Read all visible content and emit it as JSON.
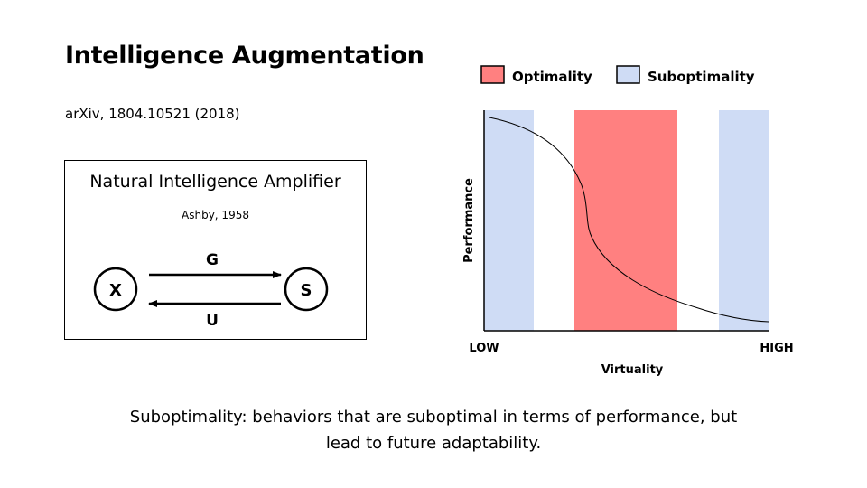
{
  "slide": {
    "title": "Intelligence Augmentation",
    "citation": "arXiv, 1804.10521 (2018)"
  },
  "box": {
    "title": "Natural Intelligence Amplifier",
    "subtitle": "Ashby, 1958",
    "node_x": "X",
    "node_s": "S",
    "arrow_top": "G",
    "arrow_bottom": "U"
  },
  "chart": {
    "legend": [
      {
        "label": "Optimality",
        "color": "#ff8080"
      },
      {
        "label": "Suboptimality",
        "color": "#cfdcf5"
      }
    ],
    "ylabel": "Performance",
    "xlabel": "Virtuality",
    "x_low": "LOW",
    "x_high": "HIGH"
  },
  "footer": {
    "line1": "Suboptimality: behaviors that are suboptimal in terms of performance, but",
    "line2": "lead to future adaptability."
  }
}
